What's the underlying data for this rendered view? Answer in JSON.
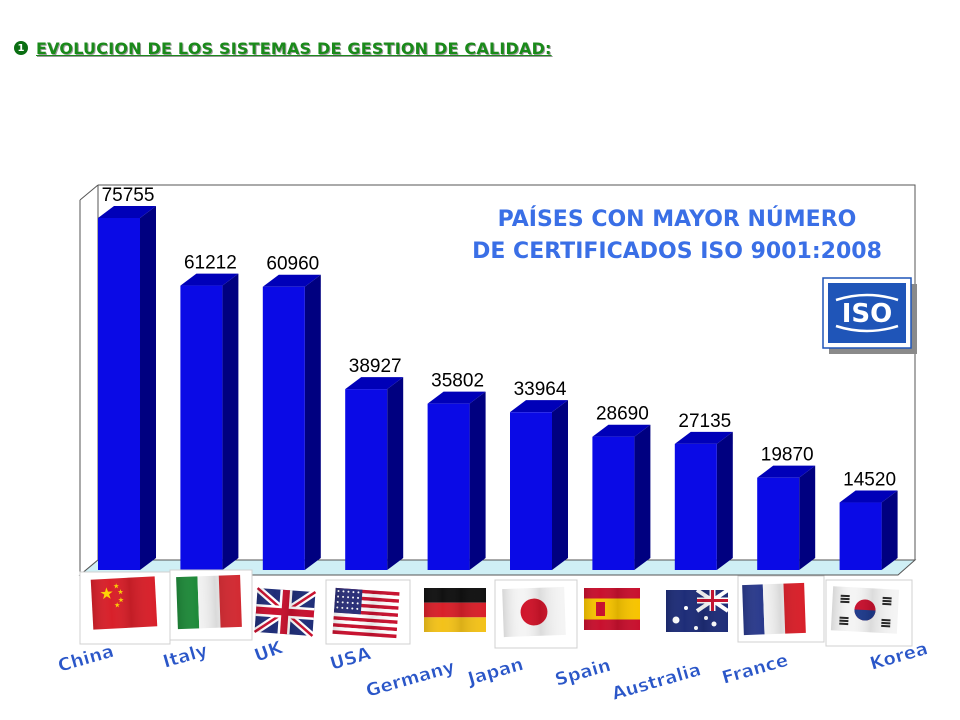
{
  "slide": {
    "bullet_glyph": "1",
    "heading": "EVOLUCION DE LOS SISTEMAS DE GESTION DE CALIDAD:",
    "heading_color": "#1a8a1a",
    "logo_text": "ISO",
    "logo_color": "#1f55b8"
  },
  "chart_data": {
    "type": "bar",
    "title_lines": [
      "PAÍSES CON MAYOR NÚMERO",
      "DE CERTIFICADOS ISO 9001:2008"
    ],
    "categories": [
      "China",
      "Italy",
      "UK",
      "USA",
      "Germany",
      "Japan",
      "Spain",
      "Australia",
      "France",
      "Korea"
    ],
    "values": [
      75755,
      61212,
      60960,
      38927,
      35802,
      33964,
      28690,
      27135,
      19870,
      14520
    ],
    "bar_color": "#0a0ae6",
    "label_color": "#2a56c8",
    "grid": false,
    "legend": "none",
    "ylim": [
      0,
      80000
    ],
    "flags": [
      "china-flag",
      "italy-flag",
      "uk-flag",
      "usa-flag",
      "germany-flag",
      "japan-flag",
      "spain-flag",
      "australia-flag",
      "france-flag",
      "korea-flag"
    ]
  }
}
